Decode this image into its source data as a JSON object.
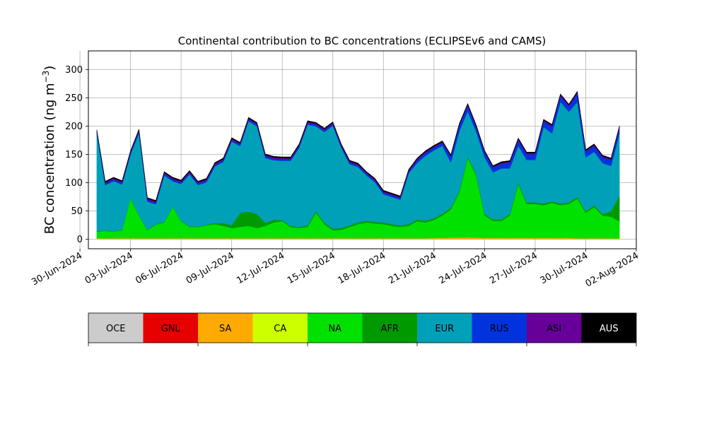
{
  "chart_data": {
    "type": "area",
    "stacked": true,
    "title": "Continental contribution to BC concentrations (ECLIPSEv6 and CAMS)",
    "xlabel": "",
    "ylabel": "BC concentration (ng m",
    "ylabel_superscript": "−3",
    "ylabel_suffix": ")",
    "ylim": [
      -17,
      333
    ],
    "xlim": [
      "2024-06-30T12:00",
      "2024-08-02T00:00"
    ],
    "grid": true,
    "yticks": [
      0,
      50,
      100,
      150,
      200,
      250,
      300
    ],
    "xticks": [
      "30-Jun-2024",
      "03-Jul-2024",
      "06-Jul-2024",
      "09-Jul-2024",
      "12-Jul-2024",
      "15-Jul-2024",
      "18-Jul-2024",
      "21-Jul-2024",
      "24-Jul-2024",
      "27-Jul-2024",
      "30-Jul-2024",
      "02-Aug-2024"
    ],
    "legend_placement": "bottom colorbar",
    "series_colors": {
      "OCE": "#cccccc",
      "GNL": "#e60000",
      "SA": "#ffaa00",
      "CA": "#ccff00",
      "NA": "#00e100",
      "AFR": "#009900",
      "EUR": "#00a0b8",
      "RUS": "#0033dd",
      "ASI": "#660099",
      "AUS": "#000000"
    },
    "legend": [
      "OCE",
      "GNL",
      "SA",
      "CA",
      "NA",
      "AFR",
      "EUR",
      "RUS",
      "ASI",
      "AUS"
    ],
    "x": [
      "2024-07-01",
      "2024-07-01T12:00",
      "2024-07-02",
      "2024-07-02T12:00",
      "2024-07-03",
      "2024-07-03T12:00",
      "2024-07-04",
      "2024-07-04T12:00",
      "2024-07-05",
      "2024-07-05T12:00",
      "2024-07-06",
      "2024-07-06T12:00",
      "2024-07-07",
      "2024-07-07T12:00",
      "2024-07-08",
      "2024-07-08T12:00",
      "2024-07-09",
      "2024-07-09T12:00",
      "2024-07-10",
      "2024-07-10T12:00",
      "2024-07-11",
      "2024-07-11T12:00",
      "2024-07-12",
      "2024-07-12T12:00",
      "2024-07-13",
      "2024-07-13T12:00",
      "2024-07-14",
      "2024-07-14T12:00",
      "2024-07-15",
      "2024-07-15T12:00",
      "2024-07-16",
      "2024-07-16T12:00",
      "2024-07-17",
      "2024-07-17T12:00",
      "2024-07-18",
      "2024-07-18T12:00",
      "2024-07-19",
      "2024-07-19T12:00",
      "2024-07-20",
      "2024-07-20T12:00",
      "2024-07-21",
      "2024-07-21T12:00",
      "2024-07-22",
      "2024-07-22T12:00",
      "2024-07-23",
      "2024-07-23T12:00",
      "2024-07-24",
      "2024-07-24T12:00",
      "2024-07-25",
      "2024-07-25T12:00",
      "2024-07-26",
      "2024-07-26T12:00",
      "2024-07-27",
      "2024-07-27T12:00",
      "2024-07-28",
      "2024-07-28T12:00",
      "2024-07-29",
      "2024-07-29T12:00",
      "2024-07-30",
      "2024-07-30T12:00",
      "2024-07-31",
      "2024-07-31T12:00",
      "2024-08-01"
    ],
    "series": [
      {
        "name": "OCE",
        "values": [
          0.5,
          0.5,
          0.5,
          0.5,
          0.5,
          0.5,
          0.5,
          0.5,
          0.5,
          0.5,
          0.5,
          0.5,
          0.5,
          0.5,
          0.5,
          0.5,
          0.5,
          0.5,
          0.5,
          0.5,
          0.5,
          0.5,
          0.5,
          0.5,
          0.5,
          0.5,
          0.5,
          0.5,
          0.5,
          0.5,
          0.5,
          0.5,
          0.5,
          0.5,
          0.5,
          0.5,
          0.5,
          0.5,
          0.5,
          0.5,
          0.5,
          0.5,
          0.5,
          0.5,
          0.5,
          0.5,
          0.5,
          0.5,
          0.5,
          0.5,
          0.5,
          0.5,
          0.5,
          0.5,
          0.5,
          0.5,
          0.5,
          0.5,
          0.5,
          0.5,
          0.5,
          0.5,
          0.5
        ]
      },
      {
        "name": "GNL",
        "values": [
          0.3,
          0.3,
          0.3,
          0.3,
          0.3,
          0.3,
          0.3,
          0.3,
          0.3,
          0.3,
          0.3,
          0.3,
          0.3,
          0.3,
          0.3,
          0.3,
          0.3,
          0.3,
          0.3,
          0.3,
          0.3,
          0.3,
          0.3,
          0.3,
          0.3,
          0.3,
          0.3,
          0.3,
          0.3,
          0.3,
          0.3,
          0.3,
          0.3,
          0.3,
          0.3,
          0.3,
          0.3,
          0.3,
          0.3,
          0.3,
          0.3,
          0.3,
          0.3,
          0.3,
          0.3,
          0.3,
          0.3,
          0.3,
          0.3,
          0.3,
          0.3,
          0.3,
          0.3,
          0.3,
          0.3,
          0.3,
          0.3,
          0.3,
          0.3,
          0.3,
          0.3,
          0.3,
          0.3
        ]
      },
      {
        "name": "SA",
        "values": [
          0.5,
          0.5,
          0.5,
          0.5,
          0.5,
          0.5,
          0.5,
          0.5,
          0.5,
          0.5,
          0.5,
          0.5,
          0.5,
          0.5,
          0.5,
          0.5,
          0.5,
          0.5,
          0.5,
          0.5,
          0.5,
          0.5,
          0.5,
          0.5,
          0.5,
          0.5,
          0.5,
          0.5,
          0.5,
          0.5,
          0.5,
          0.5,
          0.5,
          0.5,
          0.5,
          0.5,
          0.5,
          0.5,
          0.5,
          0.5,
          1,
          1,
          1.5,
          1.5,
          2,
          1.5,
          1,
          1,
          1,
          1,
          1,
          1,
          1,
          1,
          1,
          1,
          1,
          0.5,
          0.5,
          0.5,
          0.5,
          0.5,
          0.5
        ]
      },
      {
        "name": "CA",
        "values": [
          0.2,
          0.2,
          0.2,
          0.2,
          0.2,
          0.2,
          0.2,
          0.2,
          0.2,
          0.2,
          0.2,
          0.2,
          0.2,
          0.2,
          0.2,
          0.2,
          0.2,
          0.2,
          0.2,
          0.2,
          0.2,
          0.2,
          0.2,
          0.2,
          0.2,
          0.2,
          0.2,
          0.2,
          0.2,
          0.2,
          0.2,
          0.2,
          0.2,
          0.2,
          0.2,
          0.2,
          0.2,
          0.2,
          0.2,
          0.2,
          0.2,
          0.2,
          0.2,
          0.2,
          0.2,
          0.2,
          0.2,
          0.2,
          0.2,
          0.2,
          0.2,
          0.2,
          0.2,
          0.2,
          0.2,
          0.2,
          0.2,
          0.2,
          0.2,
          0.2,
          0.2,
          0.2,
          0.2
        ]
      },
      {
        "name": "NA",
        "values": [
          12,
          13,
          12,
          14,
          70,
          40,
          14,
          24,
          28,
          55,
          30,
          20,
          20,
          23,
          25,
          22,
          18,
          20,
          22,
          18,
          22,
          28,
          30,
          20,
          18,
          20,
          45,
          25,
          14,
          15,
          20,
          25,
          28,
          26,
          25,
          22,
          20,
          22,
          30,
          28,
          32,
          40,
          50,
          80,
          140,
          110,
          40,
          30,
          30,
          40,
          95,
          60,
          60,
          58,
          62,
          58,
          60,
          70,
          45,
          55,
          40,
          38,
          30
        ]
      },
      {
        "name": "AFR",
        "values": [
          1,
          1,
          1,
          1,
          1,
          1,
          1,
          1,
          1,
          1,
          1,
          1,
          1,
          1,
          2,
          5,
          5,
          25,
          25,
          25,
          5,
          5,
          2,
          2,
          2,
          3,
          3,
          3,
          3,
          3,
          3,
          3,
          3,
          3,
          3,
          3,
          3,
          3,
          3,
          3,
          3,
          3,
          3,
          3,
          3,
          3,
          3,
          3,
          3,
          3,
          3,
          3,
          3,
          3,
          3,
          3,
          3,
          3,
          3,
          3,
          3,
          10,
          45
        ]
      },
      {
        "name": "EUR",
        "values": [
          172,
          80,
          88,
          80,
          77,
          145,
          50,
          35,
          82,
          45,
          65,
          92,
          73,
          75,
          100,
          108,
          148,
          118,
          160,
          155,
          115,
          105,
          105,
          115,
          140,
          178,
          150,
          160,
          182,
          142,
          108,
          98,
          80,
          70,
          50,
          48,
          45,
          90,
          100,
          115,
          120,
          120,
          80,
          105,
          80,
          75,
          100,
          83,
          90,
          80,
          65,
          75,
          75,
          135,
          120,
          180,
          160,
          168,
          95,
          95,
          90,
          80,
          110
        ]
      },
      {
        "name": "RUS",
        "values": [
          3,
          3,
          3,
          3,
          3,
          3,
          3,
          3,
          3,
          3,
          3,
          3,
          3,
          3,
          3,
          3,
          3,
          3,
          3,
          3,
          3,
          3,
          3,
          3,
          3,
          3,
          3,
          3,
          3,
          3,
          3,
          3,
          3,
          3,
          3,
          3,
          3,
          3,
          5,
          5,
          5,
          5,
          10,
          10,
          10,
          8,
          8,
          8,
          8,
          10,
          10,
          10,
          10,
          10,
          12,
          10,
          10,
          15,
          10,
          10,
          10,
          10,
          10
        ]
      },
      {
        "name": "ASI",
        "values": [
          2,
          2,
          2,
          2,
          2,
          2,
          2,
          2,
          2,
          2,
          2,
          2,
          2,
          2,
          2,
          2,
          2,
          2,
          2,
          2,
          2,
          2,
          2,
          2,
          2,
          2,
          2,
          2,
          2,
          2,
          2,
          2,
          2,
          2,
          2,
          2,
          2,
          2,
          2,
          2,
          2,
          2,
          2,
          2,
          2,
          2,
          2,
          2,
          2,
          2,
          2,
          2,
          2,
          2,
          2,
          2,
          2,
          2,
          2,
          2,
          2,
          2,
          2
        ]
      },
      {
        "name": "AUS",
        "values": [
          2,
          2,
          2,
          2,
          2,
          2,
          2,
          2,
          2,
          2,
          2,
          2,
          2,
          2,
          2,
          2,
          2,
          2,
          2,
          2,
          2,
          2,
          2,
          2,
          2,
          2,
          2,
          2,
          2,
          2,
          2,
          2,
          2,
          2,
          2,
          2,
          2,
          2,
          2,
          2,
          2,
          2,
          2,
          2,
          2,
          2,
          2,
          2,
          2,
          2,
          2,
          2,
          2,
          2,
          2,
          2,
          2,
          2,
          2,
          2,
          2,
          2,
          2
        ]
      }
    ]
  }
}
